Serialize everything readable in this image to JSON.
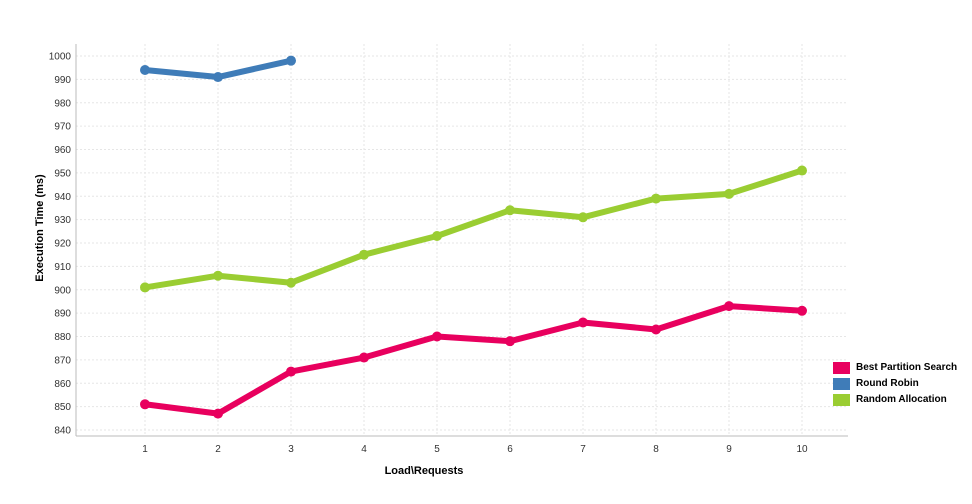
{
  "chart_data": {
    "type": "line",
    "title": "",
    "xlabel": "Load\\Requests",
    "ylabel": "Execution Time (ms)",
    "x": [
      1,
      2,
      3,
      4,
      5,
      6,
      7,
      8,
      9,
      10
    ],
    "ylim": [
      836,
      1002
    ],
    "yticks": [
      840,
      850,
      860,
      870,
      880,
      890,
      900,
      910,
      920,
      930,
      940,
      950,
      960,
      970,
      980,
      990,
      1000
    ],
    "grid": true,
    "legend_position": "bottom-right",
    "series": [
      {
        "name": "Best Partition Search",
        "color": "#E8005E",
        "values": [
          851,
          847,
          865,
          871,
          880,
          878,
          886,
          883,
          893,
          891
        ]
      },
      {
        "name": "Round Robin",
        "color": "#3F7CB8",
        "values": [
          994,
          991,
          998,
          null,
          null,
          null,
          null,
          null,
          null,
          null
        ]
      },
      {
        "name": "Random Allocation",
        "color": "#9ACD32",
        "values": [
          901,
          906,
          903,
          915,
          923,
          934,
          931,
          939,
          941,
          951
        ]
      }
    ]
  }
}
